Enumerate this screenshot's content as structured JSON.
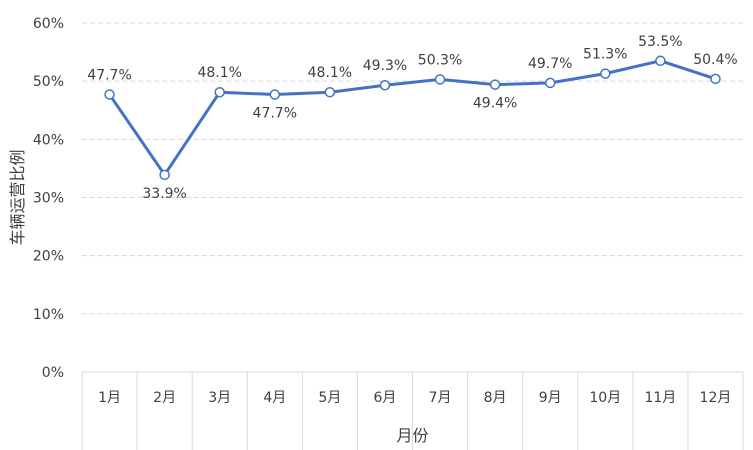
{
  "chart_data": {
    "type": "line",
    "title": "",
    "xlabel": "月份",
    "ylabel": "车辆运营比例",
    "categories": [
      "1月",
      "2月",
      "3月",
      "4月",
      "5月",
      "6月",
      "7月",
      "8月",
      "9月",
      "10月",
      "11月",
      "12月"
    ],
    "series": [
      {
        "values": [
          47.7,
          33.9,
          48.1,
          47.7,
          48.1,
          49.3,
          50.3,
          49.4,
          49.7,
          51.3,
          53.5,
          50.4
        ],
        "labels": [
          "47.7%",
          "33.9%",
          "48.1%",
          "47.7%",
          "48.1%",
          "49.3%",
          "50.3%",
          "49.4%",
          "49.7%",
          "51.3%",
          "53.5%",
          "50.4%"
        ],
        "color": "#4472c4"
      }
    ],
    "ylim": [
      0,
      60
    ],
    "yticks": [
      "0%",
      "10%",
      "20%",
      "30%",
      "40%",
      "50%",
      "60%"
    ],
    "grid": true,
    "legend": "none"
  }
}
